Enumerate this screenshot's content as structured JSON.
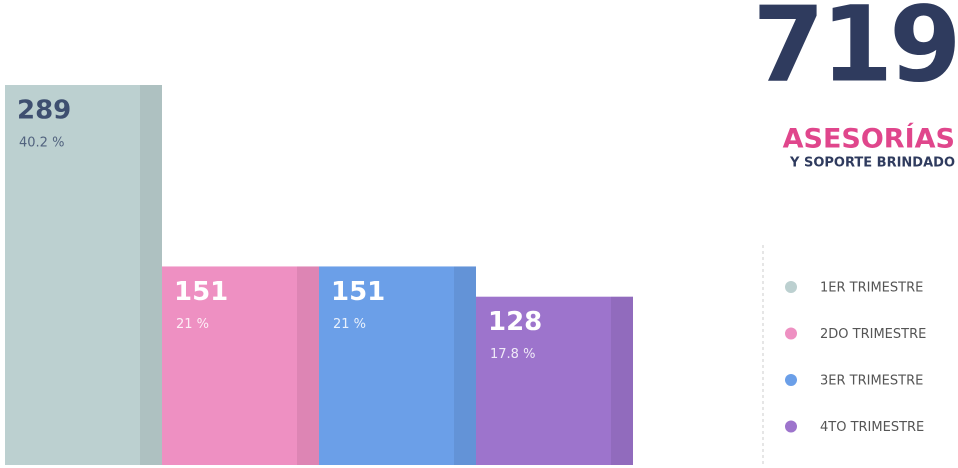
{
  "chart_data": {
    "type": "bar",
    "total": 719,
    "title": "ASESORÍAS",
    "subtitle": "Y SOPORTE BRINDADO",
    "categories": [
      "1ER TRIMESTRE",
      "2DO TRIMESTRE",
      "3ER TRIMESTRE",
      "4TO TRIMESTRE"
    ],
    "values": [
      289,
      151,
      151,
      128
    ],
    "share_labels": [
      "40.2 %",
      "21 %",
      "21 %",
      "17.8 %"
    ],
    "colors": [
      "#bcd0d0",
      "#ee90c2",
      "#6b9fe8",
      "#9d74cc"
    ],
    "label_colors": [
      "#3e4f70",
      "#ffffff",
      "#ffffff",
      "#ffffff"
    ]
  }
}
